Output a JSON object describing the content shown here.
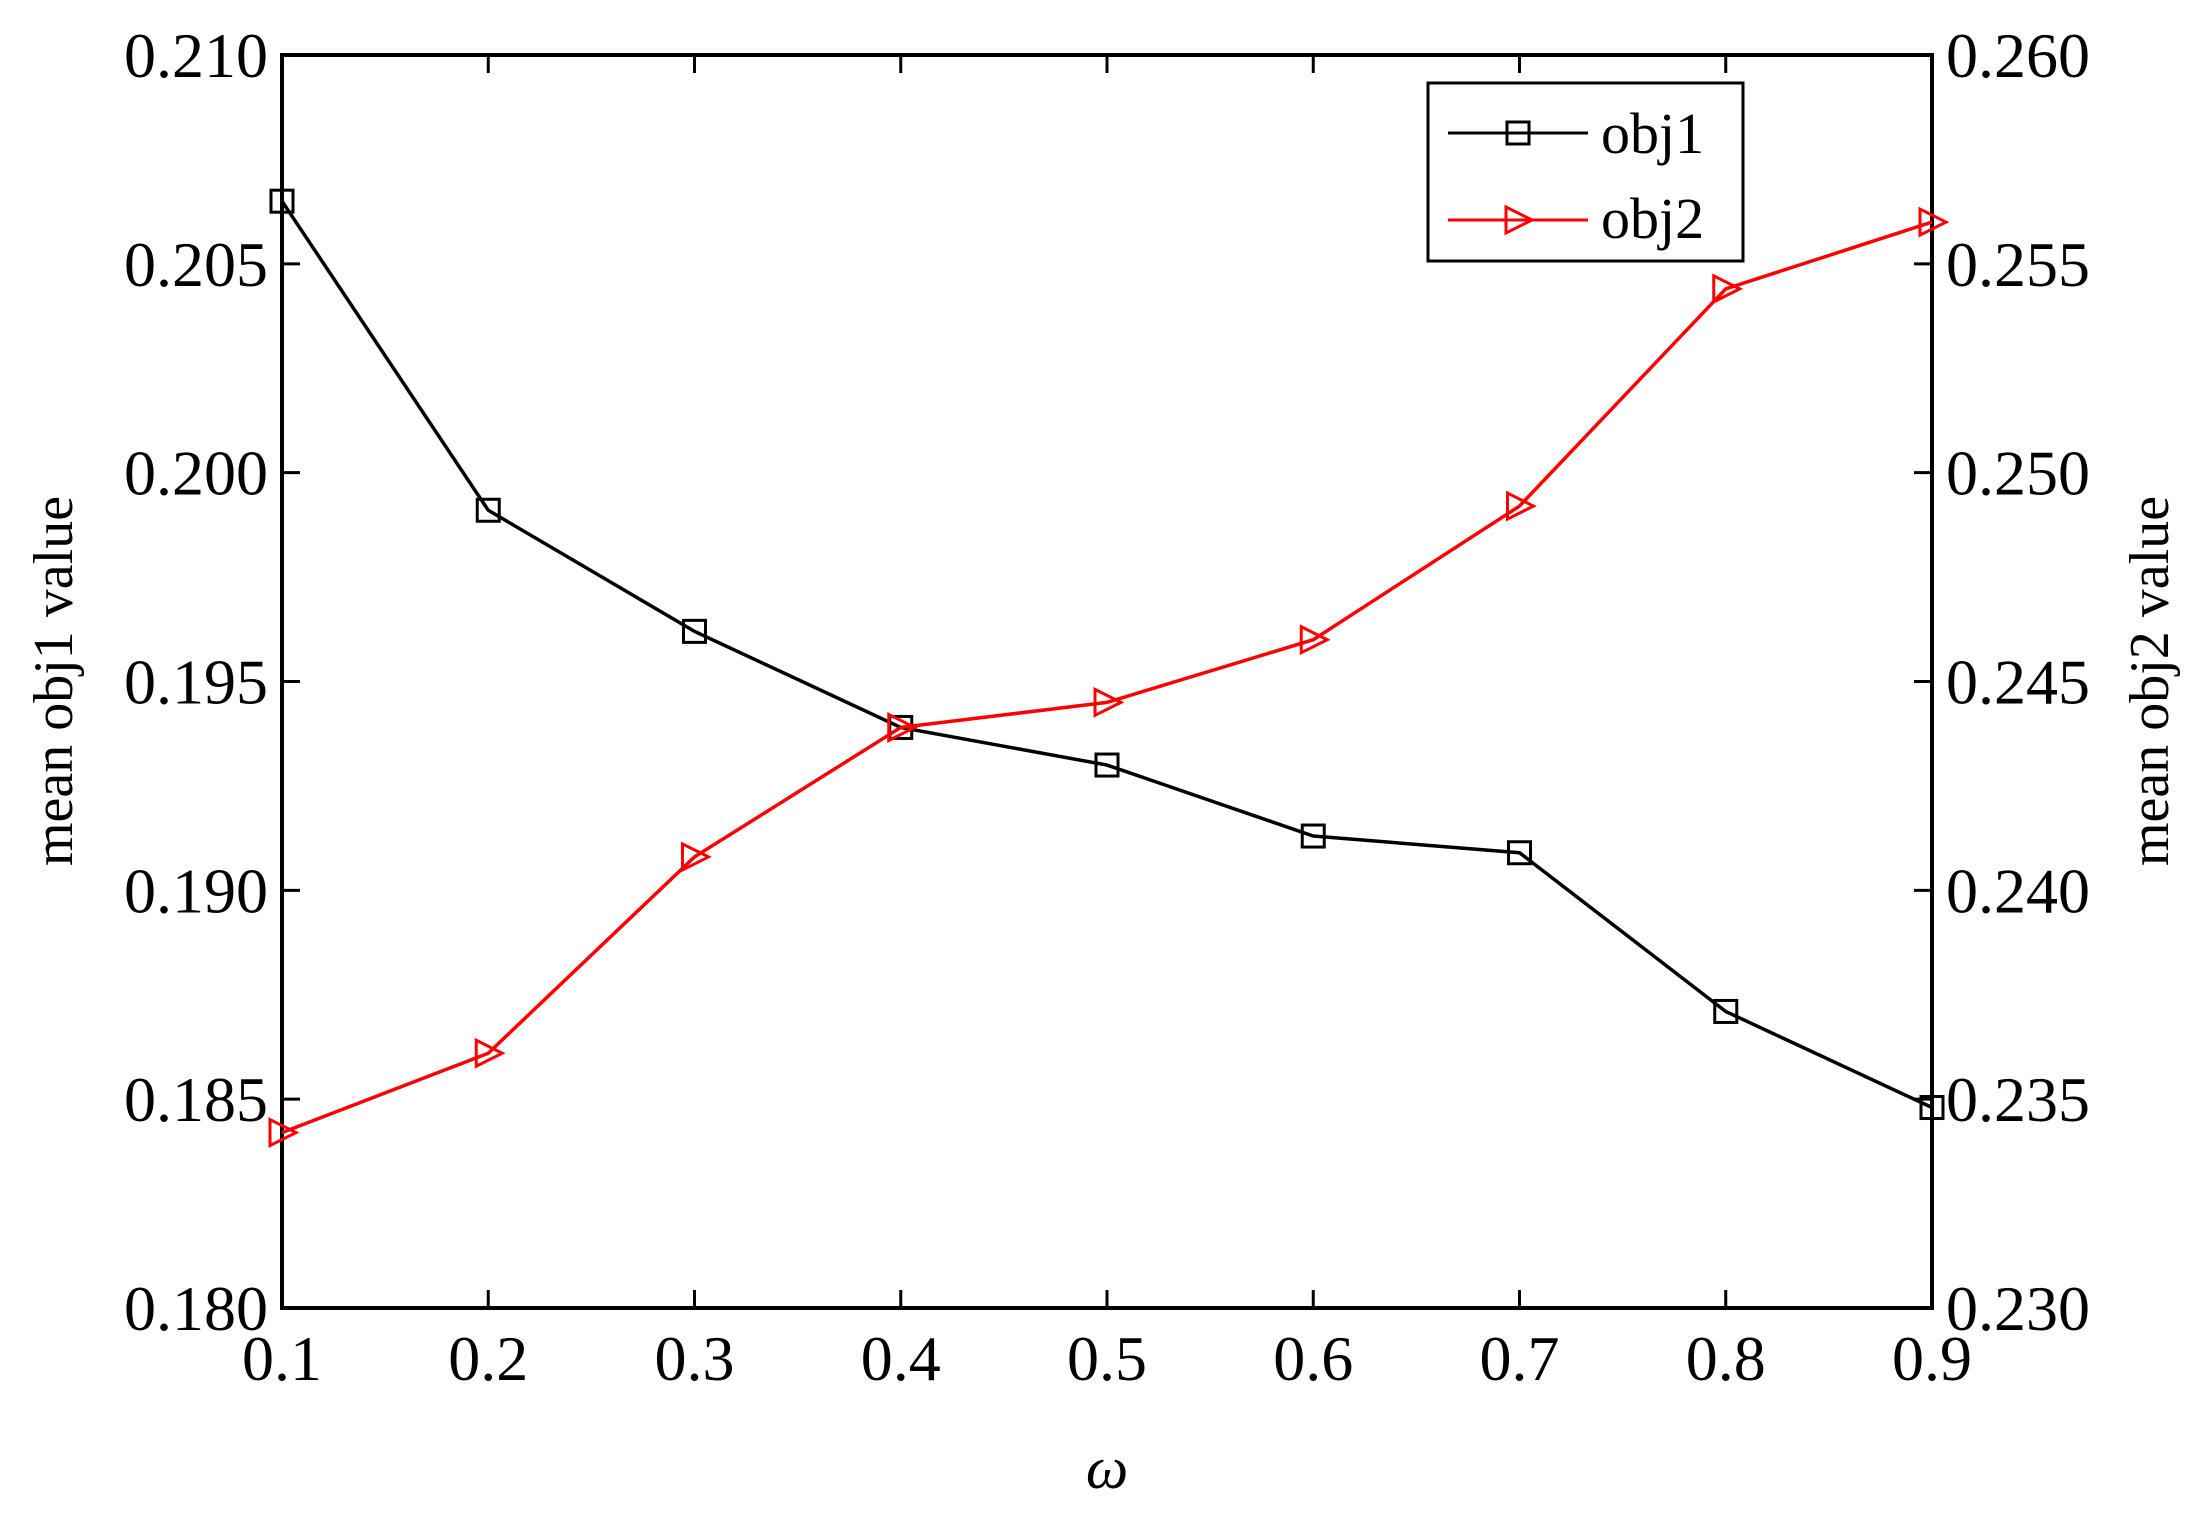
{
  "chart_data": {
    "type": "line",
    "title": "",
    "xlabel": "ω",
    "ylabel_left": "mean obj1 value",
    "ylabel_right": "mean obj2 value",
    "x": [
      0.1,
      0.2,
      0.3,
      0.4,
      0.5,
      0.6,
      0.7,
      0.8,
      0.9
    ],
    "x_ticks": [
      "0.1",
      "0.2",
      "0.3",
      "0.4",
      "0.5",
      "0.6",
      "0.7",
      "0.8",
      "0.9"
    ],
    "xlim": [
      0.1,
      0.9
    ],
    "ylim_left": [
      0.18,
      0.21
    ],
    "ylim_right": [
      0.23,
      0.26
    ],
    "y_ticks_left": [
      "0.180",
      "0.185",
      "0.190",
      "0.195",
      "0.200",
      "0.205",
      "0.210"
    ],
    "y_ticks_right": [
      "0.230",
      "0.235",
      "0.240",
      "0.245",
      "0.250",
      "0.255",
      "0.260"
    ],
    "grid": false,
    "legend_position": "top-right",
    "series": [
      {
        "name": "obj1",
        "axis": "left",
        "color": "#000000",
        "marker": "square",
        "values": [
          0.2065,
          0.1991,
          0.1962,
          0.1939,
          0.193,
          0.1913,
          0.1909,
          0.1871,
          0.1848
        ]
      },
      {
        "name": "obj2",
        "axis": "right",
        "color": "#ff0000",
        "marker": "triangle-right",
        "values": [
          0.2342,
          0.2361,
          0.2408,
          0.2439,
          0.2445,
          0.246,
          0.2492,
          0.2544,
          0.256
        ]
      }
    ]
  }
}
